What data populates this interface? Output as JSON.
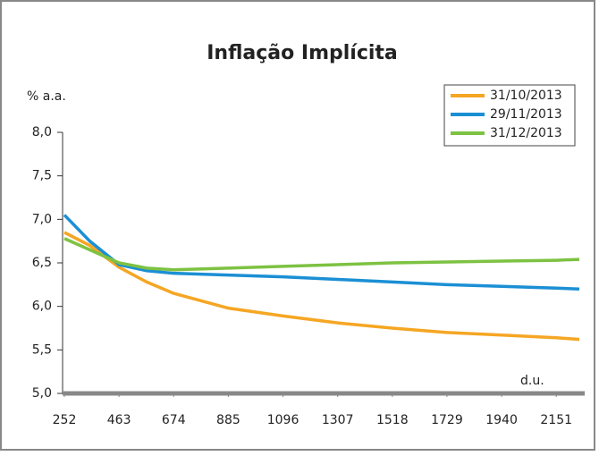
{
  "chart_data": {
    "type": "line",
    "title": "Inflação Implícita",
    "y_label": "% a.a.",
    "x_label": "d.u.",
    "x": [
      252,
      350,
      463,
      570,
      674,
      885,
      1096,
      1307,
      1518,
      1729,
      1940,
      2151,
      2240
    ],
    "series": [
      {
        "name": "31/10/2013",
        "color": "#f5a623",
        "values": [
          6.85,
          6.7,
          6.45,
          6.28,
          6.15,
          5.98,
          5.89,
          5.81,
          5.75,
          5.7,
          5.67,
          5.64,
          5.62
        ]
      },
      {
        "name": "29/11/2013",
        "color": "#1b8fd4",
        "values": [
          7.05,
          6.75,
          6.48,
          6.41,
          6.38,
          6.36,
          6.34,
          6.31,
          6.28,
          6.25,
          6.23,
          6.21,
          6.2
        ]
      },
      {
        "name": "31/12/2013",
        "color": "#7dc242",
        "values": [
          6.78,
          6.65,
          6.5,
          6.44,
          6.42,
          6.44,
          6.46,
          6.48,
          6.5,
          6.51,
          6.52,
          6.53,
          6.54
        ]
      }
    ],
    "xlim": [
      252,
      2240
    ],
    "xticks": [
      252,
      463,
      674,
      885,
      1096,
      1307,
      1518,
      1729,
      1940,
      2151
    ],
    "ylim": [
      5,
      8
    ],
    "yticks": [
      {
        "value": 5,
        "label": "5,0"
      },
      {
        "value": 5.5,
        "label": "5,5"
      },
      {
        "value": 6,
        "label": "6,0"
      },
      {
        "value": 6.5,
        "label": "6,5"
      },
      {
        "value": 7,
        "label": "7,0"
      },
      {
        "value": 7.5,
        "label": "7,5"
      },
      {
        "value": 8,
        "label": "8,0"
      }
    ],
    "legend": "upper right"
  }
}
